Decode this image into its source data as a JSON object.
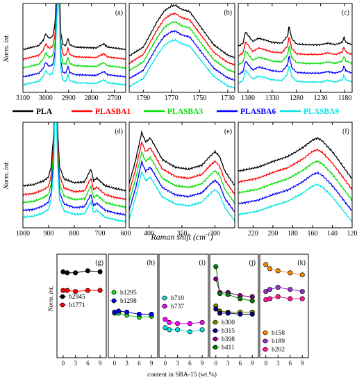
{
  "series_legend": [
    {
      "name": "PLA",
      "color": "#000000"
    },
    {
      "name": "PLASBA1",
      "color": "#ff0000"
    },
    {
      "name": "PLASBA3",
      "color": "#00dd00"
    },
    {
      "name": "PLASBA6",
      "color": "#0000ff"
    },
    {
      "name": "PLASBA9",
      "color": "#00e5e5"
    }
  ],
  "labels": {
    "y_norm": "Norm. int.",
    "x_raman": "Raman shift (cm",
    "x_raman_sup": "-1",
    "x_raman_tail": ")",
    "x_content": "content in SBA-15 (wt.%)"
  },
  "chart_data": [
    {
      "panel": "(a)",
      "type": "line",
      "xlim": [
        3100,
        2650
      ],
      "ticks": [
        "3100",
        "3000",
        "2900",
        "2800",
        "2700"
      ],
      "tick_values": [
        3100,
        3000,
        2900,
        2800,
        2700
      ],
      "offsets": [
        0.48,
        0.36,
        0.25,
        0.14,
        0.04
      ],
      "profile": [
        [
          3100,
          0.0
        ],
        [
          3030,
          0.05
        ],
        [
          3010,
          0.12
        ],
        [
          3000,
          0.2
        ],
        [
          2995,
          0.17
        ],
        [
          2985,
          0.14
        ],
        [
          2970,
          0.16
        ],
        [
          2960,
          0.3
        ],
        [
          2950,
          1.0
        ],
        [
          2946,
          1.3
        ],
        [
          2940,
          0.9
        ],
        [
          2935,
          0.22
        ],
        [
          2925,
          0.06
        ],
        [
          2912,
          0.05
        ],
        [
          2903,
          0.14
        ],
        [
          2895,
          0.06
        ],
        [
          2870,
          0.03
        ],
        [
          2780,
          0.02
        ],
        [
          2760,
          0.05
        ],
        [
          2745,
          0.07
        ],
        [
          2730,
          0.03
        ],
        [
          2650,
          0.0
        ]
      ]
    },
    {
      "panel": "(b)",
      "type": "line",
      "xlim": [
        1800,
        1725
      ],
      "ticks": [
        "1790",
        "1770",
        "1750",
        "1730"
      ],
      "tick_values": [
        1790,
        1770,
        1750,
        1730
      ],
      "offsets": [
        0.38,
        0.29,
        0.2,
        0.1,
        0.0
      ],
      "profile": [
        [
          1800,
          0.02
        ],
        [
          1790,
          0.13
        ],
        [
          1780,
          0.45
        ],
        [
          1775,
          0.58
        ],
        [
          1770,
          0.64
        ],
        [
          1767,
          0.65
        ],
        [
          1763,
          0.6
        ],
        [
          1757,
          0.57
        ],
        [
          1750,
          0.4
        ],
        [
          1740,
          0.16
        ],
        [
          1730,
          0.03
        ],
        [
          1725,
          0.0
        ]
      ]
    },
    {
      "panel": "(c)",
      "type": "line",
      "xlim": [
        1400,
        1165
      ],
      "ticks": [
        "1380",
        "1330",
        "1280",
        "1230",
        "1180"
      ],
      "tick_values": [
        1380,
        1330,
        1280,
        1230,
        1180
      ],
      "offsets": [
        0.5,
        0.38,
        0.27,
        0.15,
        0.04
      ],
      "profile": [
        [
          1400,
          0.02
        ],
        [
          1390,
          0.06
        ],
        [
          1385,
          0.2
        ],
        [
          1380,
          0.16
        ],
        [
          1370,
          0.08
        ],
        [
          1358,
          0.12
        ],
        [
          1345,
          0.1
        ],
        [
          1330,
          0.07
        ],
        [
          1310,
          0.06
        ],
        [
          1298,
          0.15
        ],
        [
          1295,
          0.28
        ],
        [
          1290,
          0.12
        ],
        [
          1280,
          0.05
        ],
        [
          1260,
          0.04
        ],
        [
          1230,
          0.04
        ],
        [
          1215,
          0.06
        ],
        [
          1200,
          0.04
        ],
        [
          1185,
          0.07
        ],
        [
          1182,
          0.14
        ],
        [
          1178,
          0.07
        ],
        [
          1165,
          0.04
        ]
      ]
    },
    {
      "panel": "(d)",
      "type": "line",
      "xlim": [
        1000,
        600
      ],
      "ticks": [
        "1000",
        "900",
        "800",
        "700",
        "600"
      ],
      "tick_values": [
        1000,
        900,
        800,
        700,
        600
      ],
      "offsets": [
        0.34,
        0.25,
        0.17,
        0.09,
        0.02
      ],
      "profile": [
        [
          1000,
          0.05
        ],
        [
          960,
          0.06
        ],
        [
          920,
          0.1
        ],
        [
          900,
          0.14
        ],
        [
          890,
          0.25
        ],
        [
          880,
          0.6
        ],
        [
          873,
          1.8
        ],
        [
          866,
          0.7
        ],
        [
          858,
          0.25
        ],
        [
          840,
          0.12
        ],
        [
          800,
          0.08
        ],
        [
          760,
          0.09
        ],
        [
          740,
          0.2
        ],
        [
          735,
          0.22
        ],
        [
          725,
          0.1
        ],
        [
          712,
          0.13
        ],
        [
          705,
          0.11
        ],
        [
          680,
          0.05
        ],
        [
          640,
          0.02
        ],
        [
          600,
          0.0
        ]
      ]
    },
    {
      "panel": "(e)",
      "type": "line",
      "xlim": [
        430,
        270
      ],
      "ticks": [
        "400",
        "350",
        "300"
      ],
      "tick_values": [
        400,
        350,
        300
      ],
      "offsets": [
        0.36,
        0.27,
        0.18,
        0.09,
        0.0
      ],
      "profile": [
        [
          430,
          0.05
        ],
        [
          420,
          0.3
        ],
        [
          411,
          0.58
        ],
        [
          405,
          0.48
        ],
        [
          398,
          0.52
        ],
        [
          392,
          0.45
        ],
        [
          380,
          0.3
        ],
        [
          360,
          0.22
        ],
        [
          340,
          0.2
        ],
        [
          320,
          0.24
        ],
        [
          308,
          0.33
        ],
        [
          300,
          0.38
        ],
        [
          293,
          0.33
        ],
        [
          285,
          0.18
        ],
        [
          270,
          0.03
        ]
      ]
    },
    {
      "panel": "(f)",
      "type": "line",
      "xlim": [
        235,
        120
      ],
      "ticks": [
        "220",
        "200",
        "180",
        "160",
        "140",
        "120"
      ],
      "tick_values": [
        220,
        200,
        180,
        160,
        140,
        120
      ],
      "offsets": [
        0.44,
        0.33,
        0.22,
        0.11,
        0.0
      ],
      "profile": [
        [
          235,
          0.1
        ],
        [
          215,
          0.14
        ],
        [
          200,
          0.2
        ],
        [
          185,
          0.25
        ],
        [
          170,
          0.34
        ],
        [
          160,
          0.42
        ],
        [
          155,
          0.44
        ],
        [
          150,
          0.41
        ],
        [
          140,
          0.3
        ],
        [
          130,
          0.16
        ],
        [
          120,
          0.02
        ]
      ]
    },
    {
      "panel": "(g)",
      "type": "scatter",
      "xlim": [
        -1.5,
        10.5
      ],
      "ylim": [
        0,
        1
      ],
      "x": [
        0,
        1,
        3,
        6,
        9
      ],
      "ticks": [
        "0",
        "3",
        "6",
        "9"
      ],
      "tick_values": [
        0,
        3,
        6,
        9
      ],
      "series": [
        {
          "name": "b2945",
          "color": "#000000",
          "values": [
            0.83,
            0.82,
            0.82,
            0.84,
            0.83
          ]
        },
        {
          "name": "b1771",
          "color": "#ff0000",
          "values": [
            0.65,
            0.65,
            0.64,
            0.65,
            0.65
          ]
        }
      ]
    },
    {
      "panel": "(h)",
      "type": "scatter",
      "xlim": [
        -1.5,
        10.5
      ],
      "ylim": [
        0,
        1
      ],
      "x": [
        0,
        1,
        3,
        6,
        9
      ],
      "ticks": [
        "0",
        "3",
        "6",
        "9"
      ],
      "tick_values": [
        0,
        3,
        6,
        9
      ],
      "series": [
        {
          "name": "b1295",
          "color": "#22dd22",
          "values": [
            0.43,
            0.43,
            0.41,
            0.39,
            0.4
          ]
        },
        {
          "name": "b1298",
          "color": "#0000ee",
          "values": [
            0.44,
            0.45,
            0.44,
            0.42,
            0.42
          ]
        }
      ]
    },
    {
      "panel": "(i)",
      "type": "scatter",
      "xlim": [
        -1.5,
        10.5
      ],
      "ylim": [
        0,
        1
      ],
      "x": [
        0,
        1,
        3,
        6,
        9
      ],
      "ticks": [
        "0",
        "3",
        "6",
        "9"
      ],
      "tick_values": [
        0,
        3,
        6,
        9
      ],
      "series": [
        {
          "name": "b710",
          "color": "#00e5e5",
          "values": [
            0.29,
            0.27,
            0.27,
            0.25,
            0.27
          ]
        },
        {
          "name": "b737",
          "color": "#ff00ff",
          "values": [
            0.37,
            0.34,
            0.33,
            0.33,
            0.34
          ]
        }
      ]
    },
    {
      "panel": "(j)",
      "type": "scatter",
      "xlim": [
        -1.5,
        10.5
      ],
      "ylim": [
        0,
        1
      ],
      "x": [
        0,
        1,
        3,
        6,
        9
      ],
      "ticks": [
        "0",
        "3",
        "6",
        "9"
      ],
      "tick_values": [
        0,
        3,
        6,
        9
      ],
      "series": [
        {
          "name": "b300",
          "color": "#808000",
          "values": [
            0.5,
            0.45,
            0.44,
            0.44,
            0.44
          ]
        },
        {
          "name": "b315",
          "color": "#000080",
          "values": [
            0.47,
            0.43,
            0.43,
            0.42,
            0.42
          ]
        },
        {
          "name": "b398",
          "color": "#800080",
          "values": [
            0.76,
            0.63,
            0.63,
            0.6,
            0.59
          ]
        },
        {
          "name": "b411",
          "color": "#008000",
          "values": [
            0.88,
            0.62,
            0.61,
            0.57,
            0.55
          ]
        }
      ]
    },
    {
      "panel": "(k)",
      "type": "scatter",
      "xlim": [
        -1.5,
        10.5
      ],
      "ylim": [
        0,
        1
      ],
      "x": [
        0,
        1,
        3,
        6,
        9
      ],
      "ticks": [
        "0",
        "3",
        "6",
        "9"
      ],
      "tick_values": [
        0,
        3,
        6,
        9
      ],
      "series": [
        {
          "name": "b158",
          "color": "#ff8c00",
          "values": [
            0.9,
            0.86,
            0.84,
            0.82,
            0.8
          ]
        },
        {
          "name": "b189",
          "color": "#9932cc",
          "values": [
            0.64,
            0.66,
            0.68,
            0.66,
            0.64
          ]
        },
        {
          "name": "b202",
          "color": "#ff1493",
          "values": [
            0.56,
            0.57,
            0.59,
            0.57,
            0.57
          ]
        }
      ]
    }
  ]
}
